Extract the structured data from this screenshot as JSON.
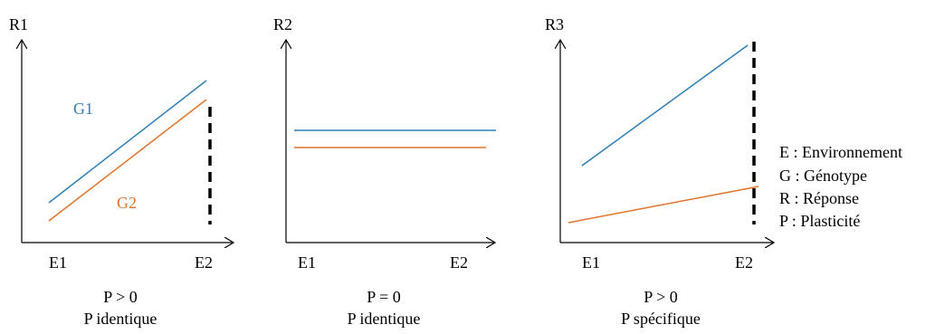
{
  "colors": {
    "g1": "#2e7fb5",
    "g2": "#e0742b",
    "axis": "#000000"
  },
  "panels": [
    {
      "y_label": "R1",
      "x_start_label": "E1",
      "x_end_label": "E2",
      "caption_line1": "P > 0",
      "caption_line2": "P identique",
      "g1_label": "G1",
      "g2_label": "G2"
    },
    {
      "y_label": "R2",
      "x_start_label": "E1",
      "x_end_label": "E2",
      "caption_line1": "P = 0",
      "caption_line2": "P identique"
    },
    {
      "y_label": "R3",
      "x_start_label": "E1",
      "x_end_label": "E2",
      "caption_line1": "P > 0",
      "caption_line2": "P spécifique"
    }
  ],
  "legend": [
    "E : Environnement",
    "G : Génotype",
    "R : Réponse",
    "P : Plasticité"
  ]
}
